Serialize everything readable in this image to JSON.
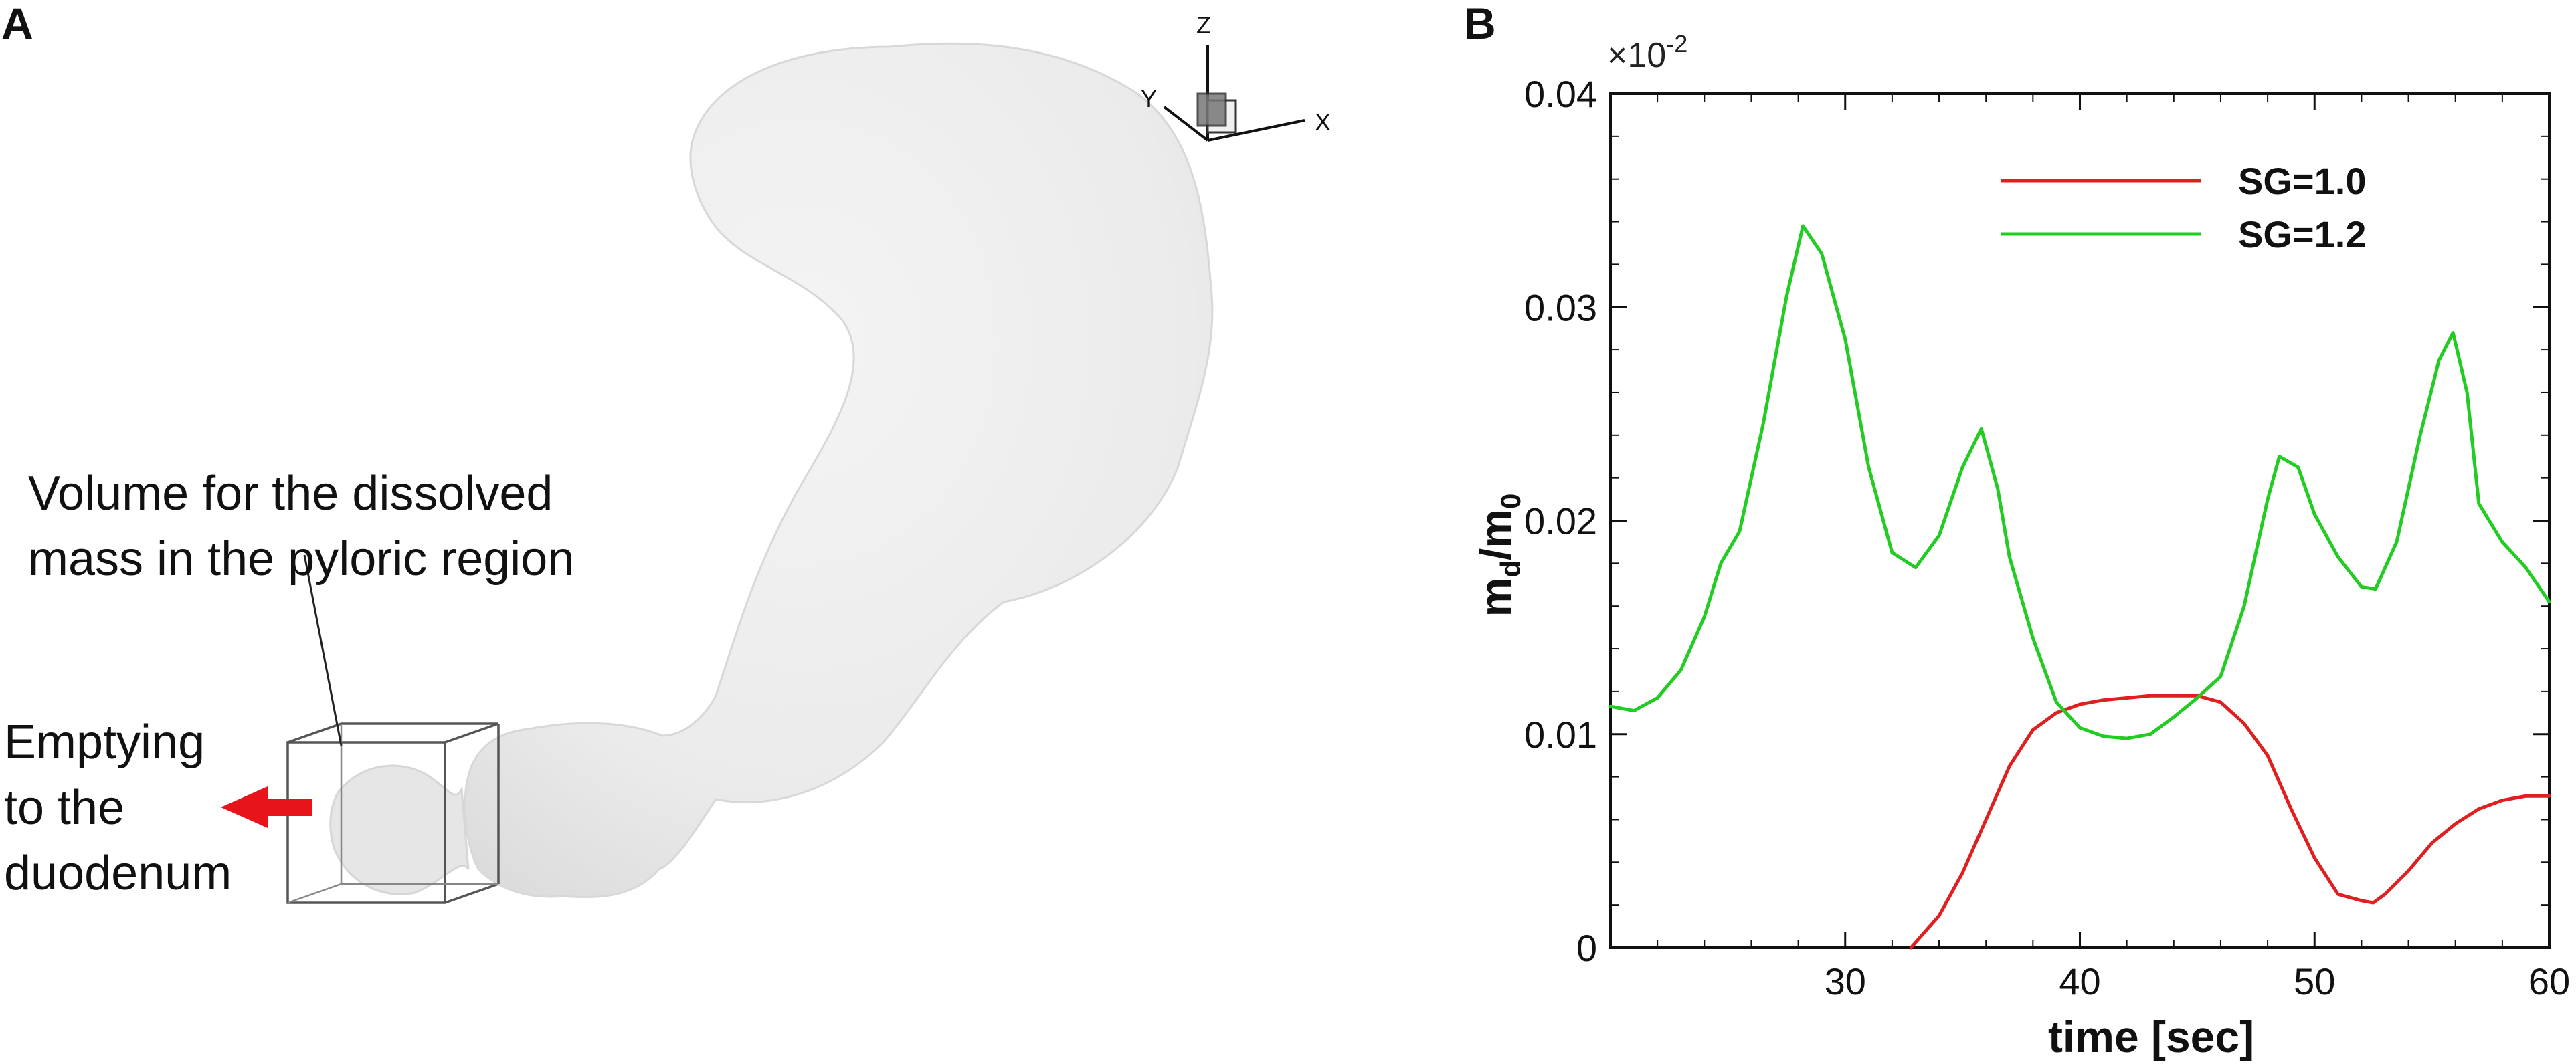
{
  "panel_a": {
    "label": "A",
    "axes_triad": {
      "z": "Z",
      "y": "Y",
      "x": "X"
    },
    "annotation_volume": [
      "Volume for the dissolved",
      "mass in the pyloric region"
    ],
    "annotation_emptying": [
      "Emptying",
      "to the",
      "duodenum"
    ],
    "arrow_color": "#e8141c"
  },
  "panel_b": {
    "label": "B",
    "scale_label": "×10",
    "scale_exponent": "-2",
    "ylabel_main": "m",
    "ylabel_sub_d": "d",
    "ylabel_slash": "/m",
    "ylabel_sub_0": "0",
    "xlabel": "time [sec]"
  },
  "chart_data": {
    "type": "line",
    "xlim": [
      20,
      60
    ],
    "ylim": [
      0,
      0.04
    ],
    "x_ticks": [
      30,
      40,
      50,
      60
    ],
    "y_ticks": [
      0,
      0.01,
      0.02,
      0.03,
      0.04
    ],
    "y_tick_labels": [
      "0",
      "0.01",
      "0.02",
      "0.03",
      "0.04"
    ],
    "legend_position": "top-right",
    "grid": false,
    "series": [
      {
        "name": "SG=1.0",
        "color": "#e02020",
        "x": [
          32.8,
          34,
          35,
          36,
          37,
          38,
          39,
          40,
          41,
          42,
          43,
          44,
          45,
          46,
          47,
          48,
          49,
          50,
          51,
          52,
          52.5,
          53,
          54,
          55,
          56,
          57,
          58,
          59,
          60
        ],
        "y": [
          0,
          0.0015,
          0.0035,
          0.006,
          0.0085,
          0.0102,
          0.011,
          0.0114,
          0.0116,
          0.0117,
          0.0118,
          0.0118,
          0.0118,
          0.0115,
          0.0105,
          0.009,
          0.0065,
          0.0042,
          0.0025,
          0.0022,
          0.0021,
          0.0025,
          0.0036,
          0.0049,
          0.0058,
          0.0065,
          0.0069,
          0.0071,
          0.0071
        ]
      },
      {
        "name": "SG=1.2",
        "color": "#22cc22",
        "x": [
          20,
          21,
          22,
          23,
          24,
          24.7,
          25.5,
          26.5,
          27.5,
          28.2,
          29,
          30,
          31,
          32,
          33,
          34,
          35,
          35.8,
          36.5,
          37,
          38,
          39,
          40,
          41,
          42,
          43,
          44,
          45,
          46,
          47,
          48,
          48.5,
          49.3,
          50,
          51,
          52,
          52.6,
          53.5,
          54.5,
          55.3,
          55.9,
          56.5,
          57,
          58,
          59,
          60
        ],
        "y": [
          0.0113,
          0.0111,
          0.0117,
          0.013,
          0.0155,
          0.018,
          0.0195,
          0.0245,
          0.0305,
          0.0338,
          0.0325,
          0.0285,
          0.0225,
          0.0185,
          0.0178,
          0.0193,
          0.0225,
          0.0243,
          0.0215,
          0.0183,
          0.0145,
          0.0115,
          0.0103,
          0.0099,
          0.0098,
          0.01,
          0.0108,
          0.0117,
          0.0127,
          0.016,
          0.021,
          0.023,
          0.0225,
          0.0203,
          0.0183,
          0.0169,
          0.0168,
          0.019,
          0.024,
          0.0275,
          0.0288,
          0.026,
          0.0208,
          0.019,
          0.0178,
          0.0162
        ]
      }
    ]
  }
}
